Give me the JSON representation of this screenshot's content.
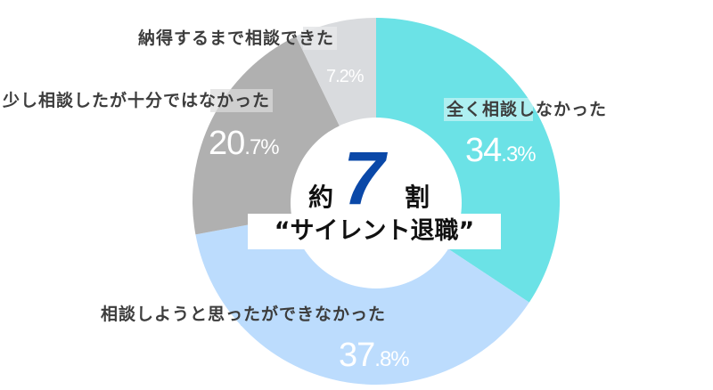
{
  "chart_data": {
    "type": "pie",
    "subtype": "donut",
    "title": "約7割 “サイレント退職”",
    "categories": [
      "全く相談しなかった",
      "相談しようと思ったができなかった",
      "少し相談したが十分ではなかった",
      "納得するまで相談できた"
    ],
    "values": [
      34.3,
      37.8,
      20.7,
      7.2
    ],
    "unit": "%",
    "colors": [
      "#6be2e6",
      "#bcdcfd",
      "#b0b0b0",
      "#d9dbde"
    ],
    "start_angle_deg": 0,
    "direction": "clockwise",
    "legend": "none"
  },
  "center": {
    "prefix": "約",
    "number": "7",
    "suffix": "割",
    "subtitle": "“サイレント退職”",
    "number_color": "#0a48a8"
  },
  "labels": [
    {
      "text": "全く相談しなかった",
      "int": "34",
      "dec": ".3%"
    },
    {
      "text": "相談しようと思ったができなかった",
      "int": "37",
      "dec": ".8%"
    },
    {
      "text": "少し相談したが十分ではなかった",
      "int": "20",
      "dec": ".7%"
    },
    {
      "text": "納得するまで相談できた",
      "int": "7",
      "dec": ".2%"
    }
  ]
}
